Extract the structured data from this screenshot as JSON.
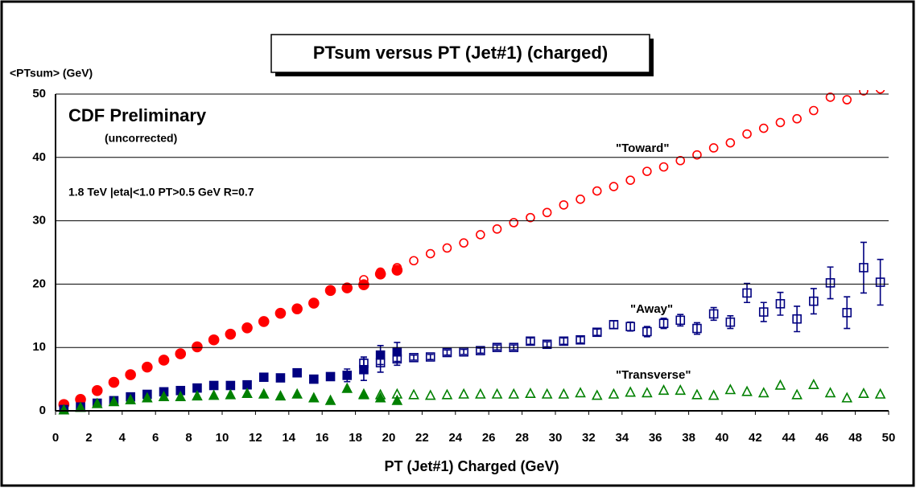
{
  "chart_data": {
    "type": "scatter",
    "title": "PTsum versus PT (Jet#1) (charged)",
    "x_label": "PT (Jet#1) Charged  (GeV)",
    "y_label": "<PTsum> (GeV)",
    "annotations": [
      "CDF Preliminary",
      "(uncorrected)",
      "1.8 TeV |eta|<1.0 PT>0.5 GeV  R=0.7",
      "\"Toward\"",
      "\"Away\"",
      "\"Transverse\""
    ],
    "xlim": [
      0,
      50
    ],
    "xticks": [
      0,
      2,
      4,
      6,
      8,
      10,
      12,
      14,
      16,
      18,
      20,
      22,
      24,
      26,
      28,
      30,
      32,
      34,
      36,
      38,
      40,
      42,
      44,
      46,
      48,
      50
    ],
    "ylim": [
      0,
      50
    ],
    "yticks": [
      0,
      10,
      20,
      30,
      40,
      50
    ],
    "grid": true,
    "series": [
      {
        "color": "#ff0000",
        "marker": "circle",
        "filled": true,
        "x": [
          0.5,
          1.5,
          2.5,
          3.5,
          4.5,
          5.5,
          6.5,
          7.5,
          8.5,
          9.5,
          10.5,
          11.5,
          12.5,
          13.5,
          14.5,
          15.5,
          16.5,
          17.5,
          18.5,
          19.5,
          20.5
        ],
        "values": [
          1.0,
          1.8,
          3.2,
          4.5,
          5.7,
          6.9,
          8.0,
          9.0,
          10.1,
          11.2,
          12.1,
          13.1,
          14.1,
          15.4,
          16.1,
          17.0,
          19.0,
          19.4,
          19.9,
          21.6,
          22.2
        ]
      },
      {
        "color": "#ff0000",
        "marker": "circle",
        "filled": false,
        "x": [
          18.5,
          19.5,
          20.5,
          21.5,
          22.5,
          23.5,
          24.5,
          25.5,
          26.5,
          27.5,
          28.5,
          29.5,
          30.5,
          31.5,
          32.5,
          33.5,
          34.5,
          35.5,
          36.5,
          37.5,
          38.5,
          39.5,
          40.5,
          41.5,
          42.5,
          43.5,
          44.5,
          45.5,
          46.5,
          47.5,
          48.5,
          49.5
        ],
        "values": [
          20.7,
          21.9,
          22.6,
          23.7,
          24.8,
          25.7,
          26.5,
          27.8,
          28.7,
          29.7,
          30.5,
          31.3,
          32.5,
          33.4,
          34.7,
          35.4,
          36.4,
          37.8,
          38.5,
          39.5,
          40.4,
          41.5,
          42.3,
          43.7,
          44.6,
          45.5,
          46.1,
          47.4,
          49.5,
          49.1,
          50.5,
          50.8
        ]
      },
      {
        "color": "#000080",
        "marker": "square",
        "filled": true,
        "x": [
          0.5,
          1.5,
          2.5,
          3.5,
          4.5,
          5.5,
          6.5,
          7.5,
          8.5,
          9.5,
          10.5,
          11.5,
          12.5,
          13.5,
          14.5,
          15.5,
          16.5,
          17.5,
          18.5,
          19.5,
          20.5
        ],
        "values": [
          0.2,
          0.6,
          1.2,
          1.6,
          2.2,
          2.6,
          3.0,
          3.2,
          3.6,
          4.0,
          4.0,
          4.1,
          5.3,
          5.2,
          6.0,
          5.0,
          5.4,
          5.6,
          6.5,
          8.8,
          9.3
        ],
        "errors": [
          0.1,
          0.1,
          0.2,
          0.2,
          0.2,
          0.2,
          0.2,
          0.2,
          0.3,
          0.3,
          0.3,
          0.3,
          0.3,
          0.3,
          0.3,
          0.4,
          0.5,
          1.0,
          1.7,
          1.5,
          1.5
        ]
      },
      {
        "color": "#000080",
        "marker": "square",
        "filled": false,
        "x": [
          18.5,
          19.5,
          20.5,
          21.5,
          22.5,
          23.5,
          24.5,
          25.5,
          26.5,
          27.5,
          28.5,
          29.5,
          30.5,
          31.5,
          32.5,
          33.5,
          34.5,
          35.5,
          36.5,
          37.5,
          38.5,
          39.5,
          40.5,
          41.5,
          42.5,
          43.5,
          44.5,
          45.5,
          46.5,
          47.5,
          48.5,
          49.5
        ],
        "values": [
          7.5,
          7.6,
          8.2,
          8.4,
          8.5,
          9.2,
          9.3,
          9.5,
          10.0,
          10.0,
          11.0,
          10.5,
          11.0,
          11.2,
          12.4,
          13.6,
          13.3,
          12.5,
          13.8,
          14.3,
          13.0,
          15.3,
          14.0,
          18.6,
          15.6,
          16.9,
          14.5,
          17.3,
          20.2,
          15.5,
          22.6,
          20.3
        ],
        "errors": [
          1.0,
          1.5,
          1.0,
          0.4,
          0.4,
          0.4,
          0.4,
          0.4,
          0.4,
          0.4,
          0.5,
          0.4,
          0.5,
          0.5,
          0.5,
          0.6,
          0.7,
          0.8,
          0.8,
          0.9,
          0.9,
          1.0,
          1.0,
          1.5,
          1.5,
          1.8,
          2.0,
          2.0,
          2.5,
          2.5,
          4.0,
          3.6
        ]
      },
      {
        "color": "#008000",
        "marker": "triangle",
        "filled": true,
        "x": [
          0.5,
          1.5,
          2.5,
          3.5,
          4.5,
          5.5,
          6.5,
          7.5,
          8.5,
          9.5,
          10.5,
          11.5,
          12.5,
          13.5,
          14.5,
          15.5,
          16.5,
          17.5,
          18.5,
          19.5,
          20.5
        ],
        "values": [
          0.1,
          0.5,
          1.1,
          1.4,
          1.7,
          2.0,
          2.2,
          2.2,
          2.3,
          2.4,
          2.5,
          2.7,
          2.6,
          2.3,
          2.6,
          2.0,
          1.6,
          3.5,
          2.6,
          2.0,
          1.6
        ]
      },
      {
        "color": "#008000",
        "marker": "triangle",
        "filled": false,
        "x": [
          18.5,
          19.5,
          20.5,
          21.5,
          22.5,
          23.5,
          24.5,
          25.5,
          26.5,
          27.5,
          28.5,
          29.5,
          30.5,
          31.5,
          32.5,
          33.5,
          34.5,
          35.5,
          36.5,
          37.5,
          38.5,
          39.5,
          40.5,
          41.5,
          42.5,
          43.5,
          44.5,
          45.5,
          46.5,
          47.5,
          48.5,
          49.5
        ],
        "values": [
          2.5,
          2.5,
          2.6,
          2.5,
          2.4,
          2.5,
          2.6,
          2.6,
          2.6,
          2.6,
          2.7,
          2.6,
          2.6,
          2.8,
          2.4,
          2.6,
          2.9,
          2.8,
          3.2,
          3.2,
          2.5,
          2.4,
          3.3,
          3.0,
          2.8,
          4.0,
          2.5,
          4.1,
          2.8,
          2.0,
          2.7,
          2.6
        ]
      }
    ]
  }
}
